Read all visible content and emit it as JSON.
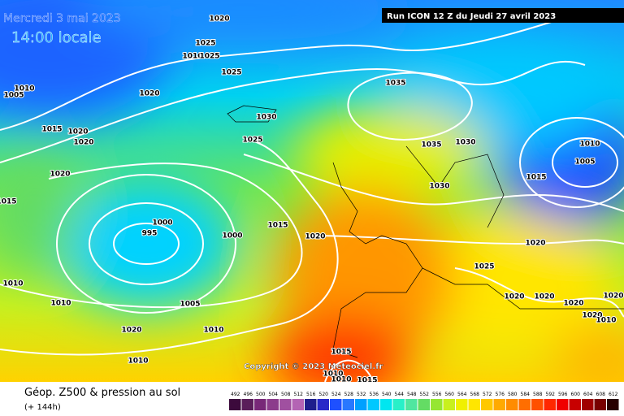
{
  "header": {
    "date": "Mercredi 3 mai 2023",
    "time": "14:00 locale",
    "run": "Run ICON 12 Z du Jeudi 27 avril 2023"
  },
  "isobar_labels": [
    "1020",
    "1025",
    "1010",
    "1025",
    "1025",
    "1010",
    "1005",
    "1020",
    "1035",
    "1030",
    "1015",
    "1020",
    "1020",
    "1025",
    "1035",
    "1030",
    "1010",
    "1005",
    "1020",
    "1015",
    "1030",
    "1015",
    "1000",
    "995",
    "1000",
    "1015",
    "1020",
    "1020",
    "1025",
    "1010",
    "1020",
    "1020",
    "1020",
    "1010",
    "1005",
    "1020",
    "1020",
    "1020",
    "1010",
    "1010",
    "1015",
    "1010",
    "1015",
    "1010",
    "1010"
  ],
  "copyright": "Copyright © 2023 Meteociel.fr",
  "legend": {
    "title": "Géop. Z500 & pression au sol",
    "subtitle": "(+ 144h)",
    "scale": {
      "labels": [
        492,
        496,
        500,
        504,
        508,
        512,
        516,
        520,
        524,
        528,
        532,
        536,
        540,
        544,
        548,
        552,
        556,
        560,
        564,
        568,
        572,
        576,
        580,
        584,
        588,
        592,
        596,
        600,
        604,
        608,
        612
      ],
      "colors": [
        "#3c0a3c",
        "#5a1e5a",
        "#782878",
        "#8c3c8c",
        "#a050a0",
        "#b464b4",
        "#1e1e8c",
        "#2828c8",
        "#1e50ff",
        "#2878ff",
        "#00a0ff",
        "#00c8ff",
        "#00e6f0",
        "#28f0c8",
        "#50e6a0",
        "#64dc64",
        "#96e632",
        "#c8f01e",
        "#f0f000",
        "#ffe600",
        "#ffc800",
        "#ffaa00",
        "#ff8c00",
        "#ff6e00",
        "#ff5000",
        "#ff2800",
        "#f00000",
        "#c80000",
        "#a00000",
        "#780000",
        "#280000"
      ]
    }
  }
}
